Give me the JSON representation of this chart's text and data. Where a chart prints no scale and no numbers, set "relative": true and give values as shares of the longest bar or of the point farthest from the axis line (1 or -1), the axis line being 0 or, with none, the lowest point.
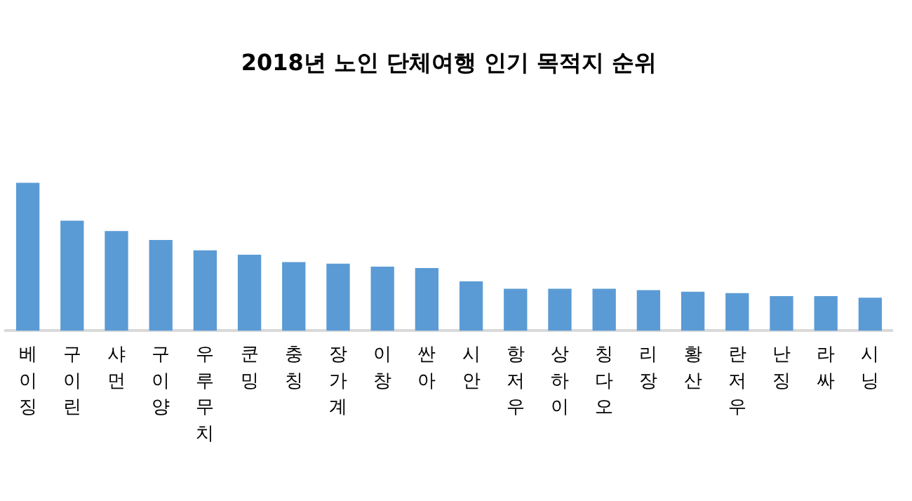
{
  "chart_data": {
    "type": "bar",
    "title": "2018년 노인 단체여행 인기 목적지 순위",
    "relative": true,
    "color": "#5b9bd5",
    "categories": [
      "베이징",
      "구이린",
      "샤먼",
      "구이양",
      "우루무치",
      "쿤밍",
      "충칭",
      "장가계",
      "이창",
      "싼아",
      "시안",
      "항저우",
      "상하이",
      "칭다오",
      "리장",
      "황산",
      "란저우",
      "난징",
      "라싸",
      "시닝"
    ],
    "values": [
      1,
      0.74,
      0.67,
      0.61,
      0.54,
      0.51,
      0.46,
      0.45,
      0.43,
      0.42,
      0.33,
      0.28,
      0.28,
      0.28,
      0.27,
      0.26,
      0.25,
      0.23,
      0.23,
      0.22
    ],
    "legend": false
  }
}
